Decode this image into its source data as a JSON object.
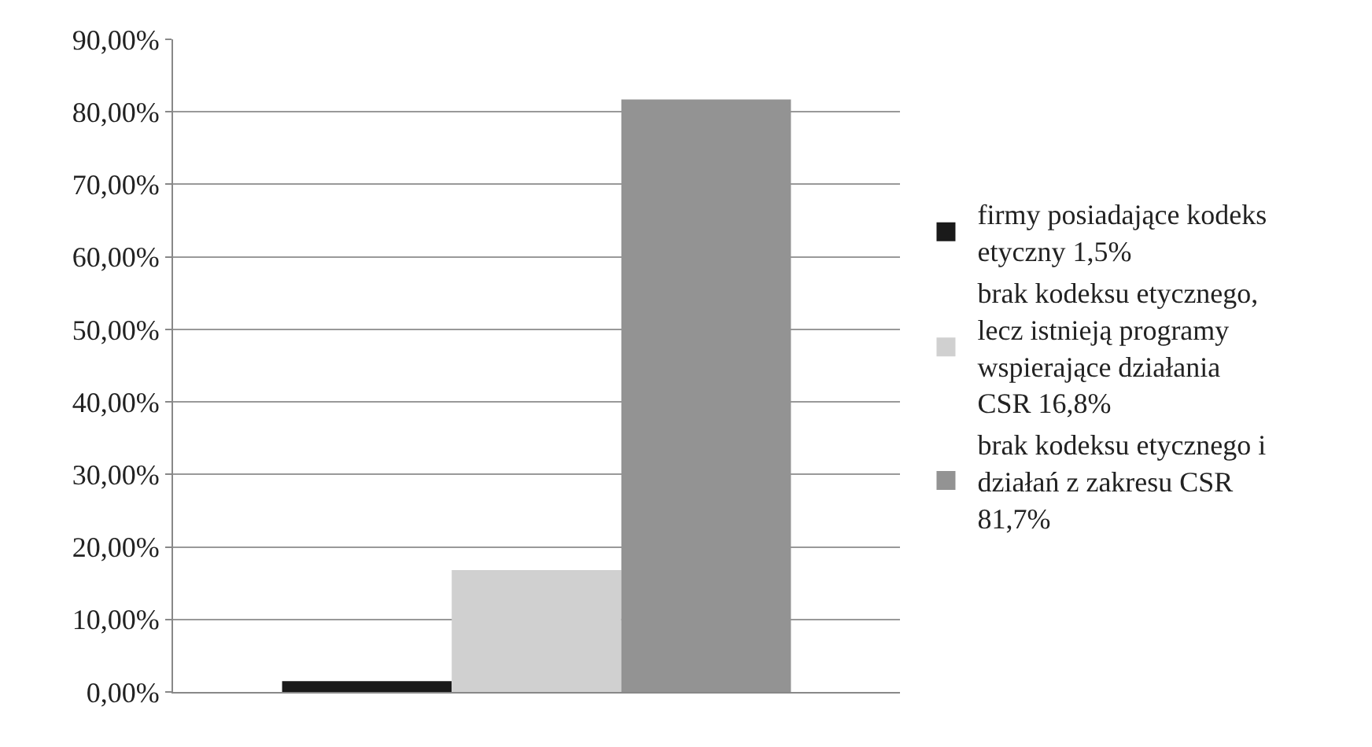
{
  "chart_data": {
    "type": "bar",
    "categories": [
      null
    ],
    "series": [
      {
        "name": "firmy posiadające kodeks etyczny 1,5%",
        "color": "#1a1a1a",
        "values": [
          1.5
        ]
      },
      {
        "name": "brak kodeksu etycznego, lecz istnieją programy wspierające działania CSR 16,8%",
        "color": "#d0d0d0",
        "values": [
          16.8
        ]
      },
      {
        "name": "brak kodeksu etycznego i działań z zakresu CSR 81,7%",
        "color": "#939393",
        "values": [
          81.7
        ]
      }
    ],
    "ylim": [
      0,
      90
    ],
    "yticks": [
      {
        "value": 0,
        "label": "0,00%"
      },
      {
        "value": 10,
        "label": "10,00%"
      },
      {
        "value": 20,
        "label": "20,00%"
      },
      {
        "value": 30,
        "label": "30,00%"
      },
      {
        "value": 40,
        "label": "40,00%"
      },
      {
        "value": 50,
        "label": "50,00%"
      },
      {
        "value": 60,
        "label": "60,00%"
      },
      {
        "value": 70,
        "label": "70,00%"
      },
      {
        "value": 80,
        "label": "80,00%"
      },
      {
        "value": 90,
        "label": "90,00%"
      }
    ],
    "grid": "y",
    "legend": "right"
  }
}
